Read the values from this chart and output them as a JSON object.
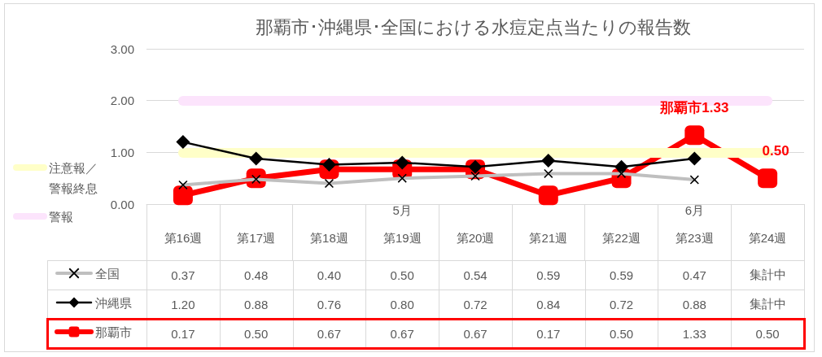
{
  "chart_data": {
    "type": "line",
    "title": "那覇市･沖縄県･全国における水痘定点当たりの報告数",
    "categories": [
      "第16週",
      "第17週",
      "第18週",
      "5月第19週",
      "第20週",
      "第21週",
      "第22週",
      "6月第23週",
      "第24週"
    ],
    "series": [
      {
        "name": "全国",
        "color": "#bfbfbf",
        "marker": "cross",
        "values": [
          0.37,
          0.48,
          0.4,
          0.5,
          0.54,
          0.59,
          0.59,
          0.47,
          null
        ],
        "value_labels": [
          "0.37",
          "0.48",
          "0.40",
          "0.50",
          "0.54",
          "0.59",
          "0.59",
          "0.47",
          "集計中"
        ]
      },
      {
        "name": "沖縄県",
        "color": "#000000",
        "marker": "diamond",
        "values": [
          1.2,
          0.88,
          0.76,
          0.8,
          0.72,
          0.84,
          0.72,
          0.88,
          null
        ],
        "value_labels": [
          "1.20",
          "0.88",
          "0.76",
          "0.80",
          "0.72",
          "0.84",
          "0.72",
          "0.88",
          "集計中"
        ]
      },
      {
        "name": "那覇市",
        "color": "#ff0000",
        "marker": "square",
        "values": [
          0.17,
          0.5,
          0.67,
          0.67,
          0.67,
          0.17,
          0.5,
          1.33,
          0.5
        ],
        "value_labels": [
          "0.17",
          "0.50",
          "0.67",
          "0.67",
          "0.67",
          "0.17",
          "0.50",
          "1.33",
          "0.50"
        ]
      }
    ],
    "ylim": [
      0,
      3
    ],
    "yticks": [
      {
        "value": 0,
        "label": "0.00"
      },
      {
        "value": 1,
        "label": "1.00"
      },
      {
        "value": 2,
        "label": "2.00"
      },
      {
        "value": 3,
        "label": "3.00"
      }
    ],
    "grid": "y",
    "legend": "bottom left",
    "ref_lines": [
      {
        "axis": "y",
        "value": 1,
        "label": "注意報／警報終息",
        "color": "#ffffc8"
      },
      {
        "axis": "y",
        "value": 2,
        "label": "警報",
        "color": "#fce4fc"
      }
    ],
    "annotations": [
      {
        "text": "那覇市1.33",
        "x": "6月第23週",
        "y": 1.33
      },
      {
        "text": "0.50",
        "x": "第24週",
        "y": 0.5
      }
    ]
  }
}
